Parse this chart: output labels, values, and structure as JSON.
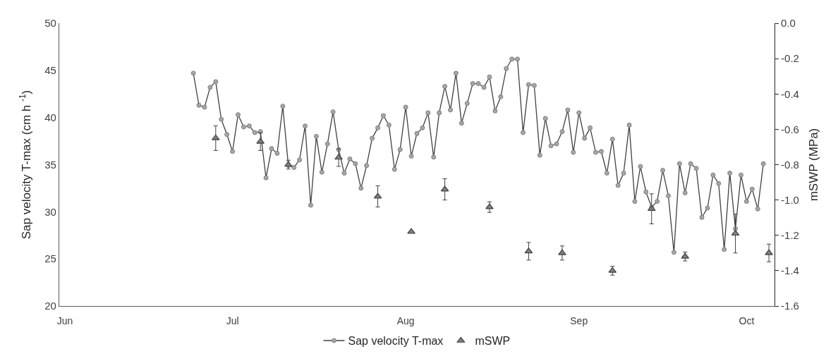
{
  "chart_data": {
    "type": "line",
    "ylabel": "Sap velocity T-max (cm h $^{-1}$)",
    "y2label": "mSWP (MPa)",
    "xlim": [
      "--05-31",
      "--10-06"
    ],
    "xticks": [
      {
        "value": "--06-01",
        "label": "Jun"
      },
      {
        "value": "--07-01",
        "label": "Jul"
      },
      {
        "value": "--08-01",
        "label": "Aug"
      },
      {
        "value": "--09-01",
        "label": "Sep"
      },
      {
        "value": "--10-01",
        "label": "Oct"
      }
    ],
    "ylim": [
      20,
      50
    ],
    "yticks": [
      20,
      25,
      30,
      35,
      40,
      45,
      50
    ],
    "y2lim": [
      -1.6,
      0
    ],
    "y2ticks": [
      -1.6,
      -1.4,
      -1.2,
      {
        "value": -1.0,
        "label": "-1.0"
      },
      -0.8,
      -0.6,
      -0.4,
      -0.2,
      {
        "value": 0,
        "label": "0.0"
      }
    ],
    "legend": "bottom",
    "series": [
      {
        "name": "Sap velocity T-max",
        "color": "#404040",
        "marker": "circle",
        "line_style": "solid",
        "x": [
          "--06-24",
          "--06-25",
          "--06-26",
          "--06-27",
          "--06-28",
          "--06-29",
          "--06-30",
          "--07-01",
          "--07-02",
          "--07-03",
          "--07-04",
          "--07-05",
          "--07-06",
          "--07-07",
          "--07-08",
          "--07-09",
          "--07-10",
          "--07-11",
          "--07-12",
          "--07-13",
          "--07-14",
          "--07-15",
          "--07-16",
          "--07-17",
          "--07-18",
          "--07-19",
          "--07-20",
          "--07-21",
          "--07-22",
          "--07-23",
          "--07-24",
          "--07-25",
          "--07-26",
          "--07-27",
          "--07-28",
          "--07-29",
          "--07-30",
          "--07-31",
          "--08-01",
          "--08-02",
          "--08-03",
          "--08-04",
          "--08-05",
          "--08-06",
          "--08-07",
          "--08-08",
          "--08-09",
          "--08-10",
          "--08-11",
          "--08-12",
          "--08-13",
          "--08-14",
          "--08-15",
          "--08-16",
          "--08-17",
          "--08-18",
          "--08-19",
          "--08-20",
          "--08-21",
          "--08-22",
          "--08-23",
          "--08-24",
          "--08-25",
          "--08-26",
          "--08-27",
          "--08-28",
          "--08-29",
          "--08-30",
          "--08-31",
          "--09-01",
          "--09-02",
          "--09-03",
          "--09-04",
          "--09-05",
          "--09-06",
          "--09-07",
          "--09-08",
          "--09-09",
          "--09-10",
          "--09-11",
          "--09-12",
          "--09-13",
          "--09-14",
          "--09-15",
          "--09-16",
          "--09-17",
          "--09-18",
          "--09-19",
          "--09-20",
          "--09-21",
          "--09-22",
          "--09-23",
          "--09-24",
          "--09-25",
          "--09-26",
          "--09-27",
          "--09-28",
          "--09-29",
          "--09-30",
          "--10-01",
          "--10-02",
          "--10-03",
          "--10-04"
        ],
        "values": [
          44.7,
          41.3,
          41.1,
          43.2,
          43.8,
          39.8,
          38.2,
          36.4,
          40.3,
          39.0,
          39.1,
          38.4,
          38.5,
          33.6,
          36.7,
          36.2,
          41.2,
          34.9,
          34.7,
          35.5,
          39.1,
          30.7,
          38.0,
          34.2,
          37.2,
          40.6,
          36.6,
          34.1,
          35.6,
          35.1,
          32.5,
          34.9,
          37.8,
          38.9,
          40.2,
          39.2,
          34.5,
          36.6,
          41.1,
          35.9,
          38.3,
          38.9,
          40.5,
          35.8,
          40.5,
          43.3,
          40.8,
          44.7,
          39.4,
          41.5,
          43.6,
          43.6,
          43.2,
          44.3,
          40.7,
          42.2,
          45.2,
          46.2,
          46.2,
          38.4,
          43.5,
          43.4,
          36.0,
          39.9,
          37.0,
          37.2,
          38.5,
          40.8,
          36.3,
          40.5,
          37.8,
          38.9,
          36.3,
          36.4,
          34.1,
          37.7,
          32.8,
          34.1,
          39.2,
          31.1,
          34.8,
          32.1,
          30.5,
          31.1,
          34.4,
          31.7,
          25.7,
          35.1,
          32.0,
          35.1,
          34.6,
          29.4,
          30.4,
          33.9,
          33.0,
          26.0,
          34.1,
          28.2,
          33.9,
          31.1,
          32.4,
          30.3,
          35.1
        ]
      },
      {
        "name": "mSWP",
        "type": "scatter",
        "axis": "y2",
        "color": "#808080",
        "marker": "triangle",
        "x": [
          "--06-28",
          "--07-06",
          "--07-11",
          "--07-20",
          "--07-27",
          "--08-02",
          "--08-08",
          "--08-16",
          "--08-23",
          "--08-29",
          "--09-07",
          "--09-14",
          "--09-20",
          "--09-29",
          "--10-05"
        ],
        "values": [
          -0.65,
          -0.67,
          -0.8,
          -0.76,
          -0.98,
          -1.18,
          -0.94,
          -1.04,
          -1.29,
          -1.3,
          -1.4,
          -1.05,
          -1.32,
          -1.19,
          -1.3
        ],
        "errors": [
          0.07,
          0.05,
          0.025,
          0.05,
          0.06,
          null,
          0.06,
          0.03,
          0.05,
          0.04,
          0.025,
          0.085,
          0.025,
          0.11,
          0.05
        ]
      }
    ]
  }
}
